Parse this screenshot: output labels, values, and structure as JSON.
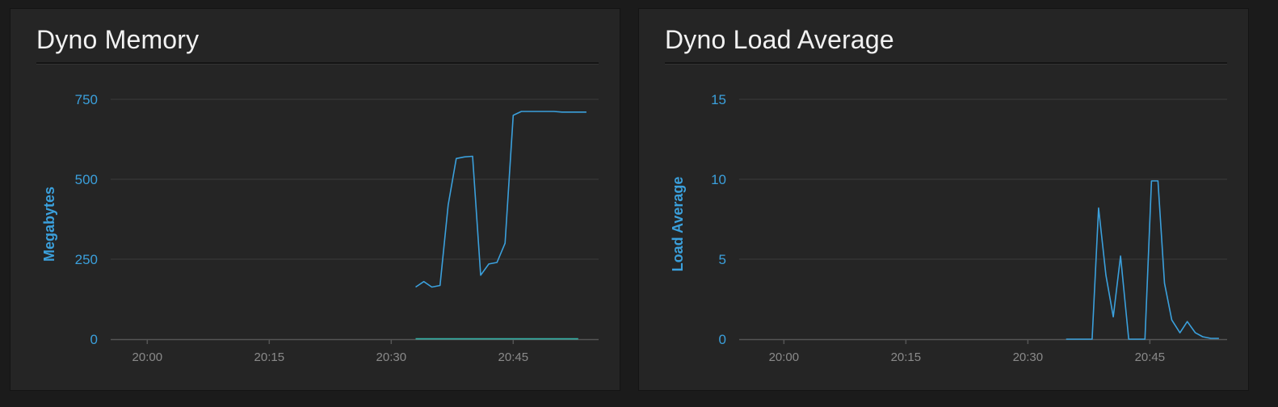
{
  "colors": {
    "series_primary": "#3ba0dc",
    "series_secondary": "#35b3a8",
    "grid": "#3a3a3a",
    "axis": "#555555"
  },
  "chart_data": [
    {
      "type": "line",
      "title": "Dyno Memory",
      "xlabel": "",
      "ylabel": "Megabytes",
      "x_ticks": [
        "20:00",
        "20:15",
        "20:30",
        "20:45"
      ],
      "x_tick_minutes": [
        0,
        15,
        30,
        45
      ],
      "xlim_minutes": [
        -4.5,
        55.5
      ],
      "ylim": [
        0,
        750
      ],
      "y_ticks": [
        0,
        250,
        500,
        750
      ],
      "grid": true,
      "series": [
        {
          "color": "#3ba0dc",
          "x_minutes": [
            33,
            34,
            35,
            36,
            37,
            38,
            39,
            40,
            41,
            42,
            43,
            44,
            45,
            46,
            47,
            50,
            51,
            54
          ],
          "values": [
            163,
            180,
            163,
            168,
            420,
            565,
            570,
            572,
            200,
            235,
            240,
            300,
            700,
            712,
            712,
            712,
            710,
            710
          ]
        },
        {
          "color": "#35b3a8",
          "x_minutes": [
            33,
            53
          ],
          "values": [
            1,
            1
          ]
        }
      ]
    },
    {
      "type": "line",
      "title": "Dyno Load Average",
      "xlabel": "",
      "ylabel": "Load Average",
      "x_ticks": [
        "20:00",
        "20:15",
        "20:30",
        "20:45"
      ],
      "x_tick_minutes": [
        0,
        15,
        30,
        45
      ],
      "xlim_minutes": [
        -5.5,
        54.5
      ],
      "ylim": [
        0,
        15
      ],
      "y_ticks": [
        0,
        5,
        10,
        15
      ],
      "grid": true,
      "series": [
        {
          "color": "#3ba0dc",
          "x_minutes": [
            34.7,
            37.9,
            38.7,
            39.6,
            40.5,
            41.4,
            42.4,
            44.4,
            45.2,
            46,
            46.8,
            47.7,
            48.7,
            49.6,
            50.6,
            51.5,
            52.5,
            53.5
          ],
          "values": [
            0,
            0,
            8.2,
            4,
            1.4,
            5.2,
            0,
            0,
            9.9,
            9.9,
            3.5,
            1.2,
            0.4,
            1.1,
            0.4,
            0.15,
            0.05,
            0.05
          ]
        }
      ]
    }
  ]
}
